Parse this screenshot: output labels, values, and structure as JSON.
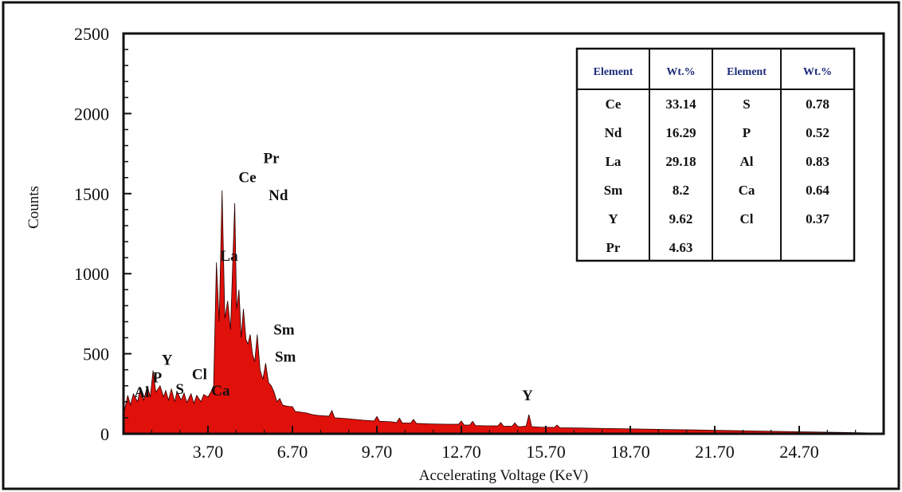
{
  "chart_data": {
    "type": "area",
    "xlabel": "Accelerating Voltage (KeV)",
    "ylabel": "Counts",
    "xlim": [
      0.7,
      27.7
    ],
    "ylim": [
      0,
      2500
    ],
    "x_ticks": [
      "3.70",
      "6.70",
      "9.70",
      "12.70",
      "15.70",
      "18.70",
      "21.70",
      "24.70"
    ],
    "x_tick_values": [
      3.7,
      6.7,
      9.7,
      12.7,
      15.7,
      18.7,
      21.7,
      24.7
    ],
    "y_ticks": [
      "0",
      "500",
      "1000",
      "1500",
      "2000",
      "2500"
    ],
    "y_tick_values": [
      0,
      500,
      1000,
      1500,
      2000,
      2500
    ],
    "fill_color": "#e0100b",
    "series": [
      {
        "x": [
          0.7,
          0.75,
          0.85,
          0.95,
          1.05,
          1.2,
          1.3,
          1.42,
          1.55,
          1.65,
          1.75,
          1.85,
          2.0,
          2.12,
          2.2,
          2.3,
          2.4,
          2.52,
          2.6,
          2.75,
          2.85,
          2.95,
          3.1,
          3.2,
          3.3,
          3.45,
          3.55,
          3.7,
          3.8,
          3.9,
          4.0,
          4.1,
          4.2,
          4.3,
          4.4,
          4.5,
          4.65,
          4.72,
          4.8,
          4.88,
          4.96,
          5.05,
          5.12,
          5.2,
          5.28,
          5.36,
          5.45,
          5.55,
          5.65,
          5.75,
          5.85,
          5.95,
          6.05,
          6.15,
          6.25,
          6.35,
          6.45,
          6.6,
          6.7,
          6.8,
          7.0,
          7.2,
          7.4,
          7.6,
          8.0,
          8.1,
          8.2,
          8.6,
          9.2,
          9.6,
          9.7,
          9.8,
          10.2,
          10.4,
          10.5,
          10.6,
          10.9,
          11.0,
          11.1,
          11.6,
          12.2,
          12.6,
          12.7,
          12.8,
          13.0,
          13.1,
          13.2,
          13.6,
          14.0,
          14.1,
          14.2,
          14.5,
          14.6,
          14.7,
          14.8,
          15.0,
          15.1,
          15.2,
          15.5,
          16.0,
          16.1,
          16.2,
          17.0,
          18.0,
          19.0,
          20.0,
          21.0,
          22.0,
          23.0,
          24.0,
          25.0,
          26.0,
          27.0,
          27.7
        ],
        "values": [
          100,
          160,
          240,
          180,
          250,
          200,
          285,
          210,
          300,
          230,
          395,
          260,
          300,
          230,
          270,
          210,
          280,
          200,
          265,
          210,
          255,
          195,
          250,
          190,
          240,
          200,
          245,
          230,
          260,
          300,
          1070,
          700,
          1520,
          720,
          830,
          650,
          1440,
          780,
          900,
          600,
          780,
          590,
          560,
          620,
          500,
          450,
          620,
          400,
          340,
          440,
          320,
          300,
          260,
          200,
          220,
          180,
          175,
          170,
          170,
          140,
          135,
          130,
          120,
          115,
          110,
          145,
          100,
          95,
          85,
          80,
          108,
          78,
          75,
          70,
          98,
          68,
          67,
          90,
          65,
          62,
          60,
          60,
          80,
          55,
          55,
          78,
          52,
          50,
          50,
          70,
          48,
          47,
          68,
          46,
          45,
          48,
          120,
          45,
          42,
          40,
          55,
          38,
          36,
          33,
          30,
          27,
          24,
          21,
          18,
          15,
          12,
          9,
          6,
          3
        ]
      }
    ],
    "peak_labels": [
      {
        "text": "Al",
        "x": 1.35,
        "y": 230
      },
      {
        "text": "P",
        "x": 1.9,
        "y": 320
      },
      {
        "text": "Y",
        "x": 2.25,
        "y": 430
      },
      {
        "text": "S",
        "x": 2.7,
        "y": 250
      },
      {
        "text": "Cl",
        "x": 3.4,
        "y": 340
      },
      {
        "text": "Ca",
        "x": 4.15,
        "y": 240
      },
      {
        "text": "La",
        "x": 4.45,
        "y": 1080
      },
      {
        "text": "Ce",
        "x": 5.1,
        "y": 1570
      },
      {
        "text": "Pr",
        "x": 5.95,
        "y": 1690
      },
      {
        "text": "Nd",
        "x": 6.2,
        "y": 1460
      },
      {
        "text": "Sm",
        "x": 6.4,
        "y": 620
      },
      {
        "text": "Sm",
        "x": 6.45,
        "y": 450
      },
      {
        "text": "Y",
        "x": 15.05,
        "y": 210
      }
    ],
    "table": {
      "headers": [
        "Element",
        "Wt.%",
        "Element",
        "Wt.%"
      ],
      "rows": [
        [
          "Ce",
          "33.14",
          "S",
          "0.78"
        ],
        [
          "Nd",
          "16.29",
          "P",
          "0.52"
        ],
        [
          "La",
          "29.18",
          "Al",
          "0.83"
        ],
        [
          "Sm",
          "8.2",
          "Ca",
          "0.64"
        ],
        [
          "Y",
          "9.62",
          "Cl",
          "0.37"
        ],
        [
          "Pr",
          "4.63",
          "",
          ""
        ]
      ]
    }
  }
}
